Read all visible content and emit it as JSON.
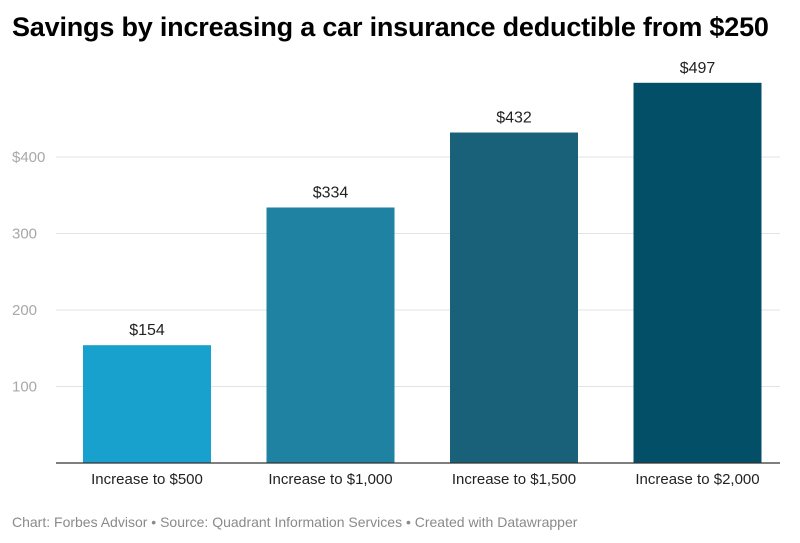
{
  "chart_data": {
    "type": "bar",
    "title": "Savings by increasing a car insurance deductible from $250",
    "categories": [
      "Increase to $500",
      "Increase to $1,000",
      "Increase to $1,500",
      "Increase to $2,000"
    ],
    "values": [
      154,
      334,
      432,
      497
    ],
    "value_labels": [
      "$154",
      "$334",
      "$432",
      "$497"
    ],
    "bar_colors": [
      "#18a1cd",
      "#1f82a3",
      "#186179",
      "#034f68"
    ],
    "y_ticks": [
      {
        "value": 100,
        "label": "100"
      },
      {
        "value": 200,
        "label": "200"
      },
      {
        "value": 300,
        "label": "300"
      },
      {
        "value": 400,
        "label": "$400"
      }
    ],
    "ylim": [
      0,
      520
    ],
    "grid": true,
    "xlabel": "",
    "ylabel": ""
  },
  "footer": {
    "text": "Chart: Forbes Advisor • Source: Quadrant Information Services • Created with Datawrapper"
  }
}
